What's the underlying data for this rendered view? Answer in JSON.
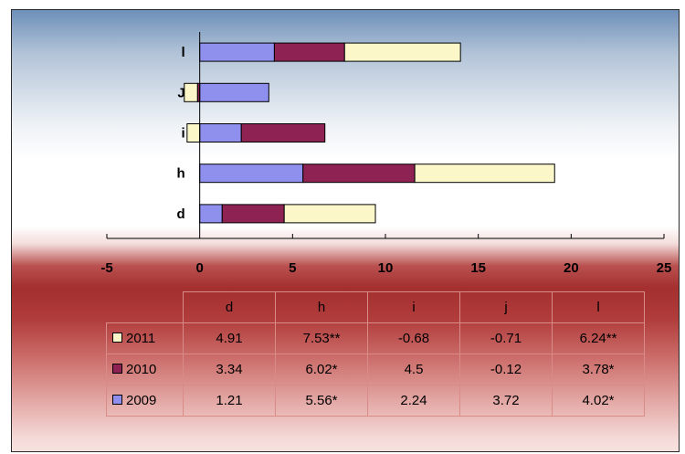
{
  "chart_data": {
    "type": "bar",
    "orientation": "horizontal",
    "stacked": true,
    "categories": [
      "d",
      "h",
      "i",
      "j",
      "l"
    ],
    "category_labels": [
      "d",
      "h",
      "i",
      "J",
      "l"
    ],
    "series": [
      {
        "name": "2009",
        "values": [
          1.21,
          5.56,
          2.24,
          3.72,
          4.02
        ],
        "labels": [
          "1.21",
          "5.56*",
          "2.24",
          "3.72",
          "4.02*"
        ],
        "color": "#8f8fee"
      },
      {
        "name": "2010",
        "values": [
          3.34,
          6.02,
          4.5,
          -0.12,
          3.78
        ],
        "labels": [
          "3.34",
          "6.02*",
          "4.5",
          "-0.12",
          "3.78*"
        ],
        "color": "#8e2252"
      },
      {
        "name": "2011",
        "values": [
          4.91,
          7.53,
          -0.68,
          -0.71,
          6.24
        ],
        "labels": [
          "4.91",
          "7.53**",
          "-0.68",
          "-0.71",
          "6.24**"
        ],
        "color": "#fbf7c8"
      }
    ],
    "xlim": [
      -5,
      25
    ],
    "xticks": [
      "-5",
      "0",
      "5",
      "10",
      "15",
      "20",
      "25"
    ],
    "grid": false,
    "legend": "data-table"
  },
  "table": {
    "headers": [
      "d",
      "h",
      "i",
      "j",
      "l"
    ]
  }
}
